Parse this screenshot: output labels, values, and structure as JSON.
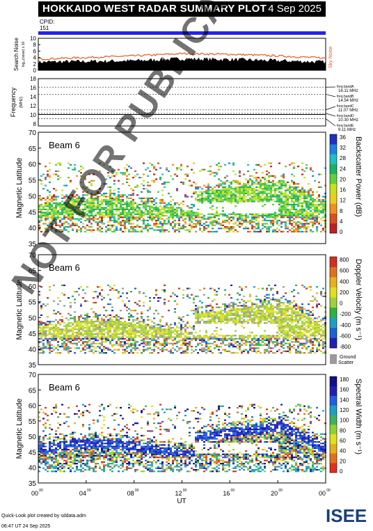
{
  "header": {
    "title": "HOKKAIDO WEST RADAR SUMMARY PLOT",
    "date": "4 Sep 2025",
    "cpid_label": "CPID:",
    "cpid_value": "151"
  },
  "footer": {
    "line1": "Quick-Look plot created by sddata.adm",
    "line2": "06:47 UT 24 Sep 2025"
  },
  "watermark": "NOT FOR PUBLICATION",
  "logo_text": "ISEE",
  "colors": {
    "cpid_bar": "#2222ee",
    "noise_sky": "#e05a20",
    "ground_scatter": "#9a9a9a"
  },
  "chart_data": [
    {
      "type": "area",
      "ylabel": "Search Noise",
      "ylabel_sub": "log₁₀(noise) x 10",
      "legend": "Sky Noise",
      "ylim": [
        0,
        10
      ],
      "yticks": [
        "10",
        "8",
        "6",
        "4",
        "2",
        "0"
      ],
      "x": [
        0,
        4,
        8,
        12,
        16,
        20,
        24
      ],
      "series": [
        {
          "name": "Search Noise",
          "values": [
            2.6,
            2.8,
            3.0,
            3.6,
            3.4,
            3.0,
            2.6
          ]
        },
        {
          "name": "Sky Noise",
          "values": [
            3.5,
            4.0,
            4.5,
            5.2,
            5.0,
            4.5,
            3.8
          ]
        }
      ]
    },
    {
      "type": "line",
      "ylabel": "Frequency",
      "ylabel_sub": "(MHz)",
      "ylim": [
        7.5,
        18
      ],
      "yticks": [
        "18",
        "16",
        "14",
        "12",
        "10",
        "8"
      ],
      "bands": [
        {
          "label": "freq bandA",
          "value": "16.11 MHz",
          "mhz": 16.11
        },
        {
          "label": "freq bandB",
          "value": "14.54 MHz",
          "mhz": 14.54
        },
        {
          "label": "freq bandC",
          "value": "11.07 MHz",
          "mhz": 11.07
        },
        {
          "label": "freq bandD",
          "value": "10.30 MHz",
          "mhz": 10.3
        },
        {
          "label": "freq bandE",
          "value": "9.11 MHz",
          "mhz": 9.11
        }
      ]
    },
    {
      "type": "heatmap",
      "beam_label": "Beam  6",
      "ylabel": "Magnetic Latitude",
      "yticks": [
        "70",
        "65",
        "60",
        "55",
        "50",
        "45",
        "40",
        "35"
      ],
      "ylim": [
        35,
        70
      ],
      "colorbar_title": "Backscatter Power (dB)",
      "colorbar_ticks": [
        "36",
        "32",
        "28",
        "24",
        "20",
        "16",
        "12",
        "8",
        "4",
        "0"
      ]
    },
    {
      "type": "heatmap",
      "beam_label": "Beam  6",
      "ylabel": "Magnetic Latitude",
      "yticks": [
        "70",
        "65",
        "60",
        "55",
        "50",
        "45",
        "40",
        "35"
      ],
      "ylim": [
        35,
        70
      ],
      "colorbar_title": "Doppler Velocity (m s⁻¹)",
      "colorbar_ticks": [
        "800",
        "600",
        "400",
        "200",
        "0",
        "-200",
        "-400",
        "-600",
        "-800"
      ],
      "ground_scatter_label_1": "Ground",
      "ground_scatter_label_2": "Scatter"
    },
    {
      "type": "heatmap",
      "beam_label": "Beam  6",
      "ylabel": "Magnetic Latitude",
      "yticks": [
        "70",
        "65",
        "60",
        "55",
        "50",
        "45",
        "40",
        "35"
      ],
      "ylim": [
        35,
        70
      ],
      "colorbar_title": "Spectral Width (m s⁻¹)",
      "colorbar_ticks": [
        "180",
        "160",
        "140",
        "120",
        "100",
        "80",
        "60",
        "40",
        "20",
        "0"
      ]
    }
  ],
  "x_axis": {
    "ticks": [
      "00",
      "04",
      "08",
      "12",
      "16",
      "20",
      "00"
    ],
    "tick_sup": "00",
    "label": "UT"
  }
}
